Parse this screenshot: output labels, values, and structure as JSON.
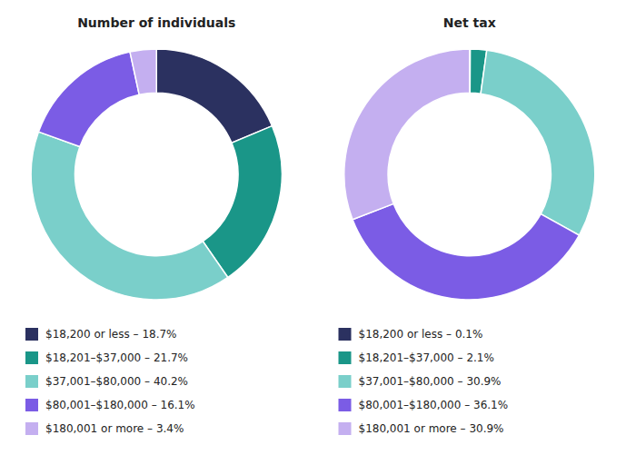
{
  "chart_data": [
    {
      "type": "pie",
      "title": "Number of individuals",
      "categories": [
        "$18,200 or less – 18.7%",
        "$18,201–$37,000 – 21.7%",
        "$37,001–$80,000 – 40.2%",
        "$80,001–$180,000 – 16.1%",
        "$180,001 or more – 3.4%"
      ],
      "values": [
        18.7,
        21.7,
        40.2,
        16.1,
        3.4
      ],
      "colors": [
        "#2b3160",
        "#1a9688",
        "#7acfca",
        "#7b5ce5",
        "#c4aff0"
      ],
      "legend": "bottom"
    },
    {
      "type": "pie",
      "title": "Net tax",
      "categories": [
        "$18,200 or less – 0.1%",
        "$18,201–$37,000 – 2.1%",
        "$37,001–$80,000 – 30.9%",
        "$80,001–$180,000 – 36.1%",
        "$180,001 or more – 30.9%"
      ],
      "values": [
        0.1,
        2.1,
        30.9,
        36.1,
        30.9
      ],
      "colors": [
        "#2b3160",
        "#1a9688",
        "#7acfca",
        "#7b5ce5",
        "#c4aff0"
      ],
      "legend": "bottom"
    }
  ]
}
